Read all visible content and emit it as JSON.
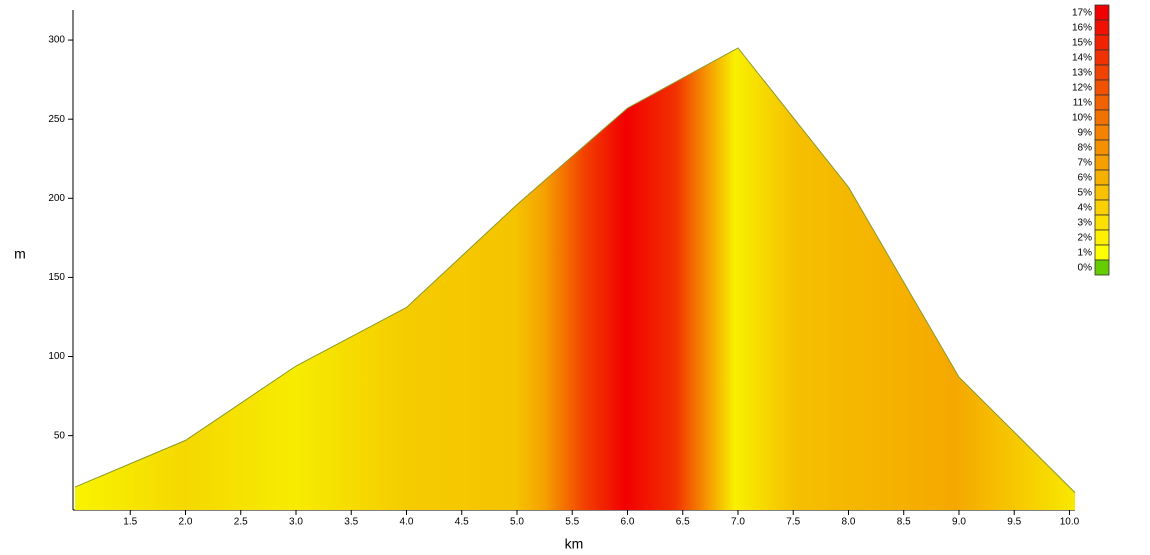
{
  "chart_data": {
    "type": "area",
    "x_label": "km",
    "y_label": "m",
    "x": [
      1,
      2,
      3,
      4,
      5,
      6,
      7,
      8,
      9,
      10.05
    ],
    "values": [
      17.5,
      47,
      94,
      131,
      196,
      257,
      295,
      207,
      87,
      14
    ],
    "color": "#8a9a2a",
    "xlim": [
      1,
      10.05
    ],
    "xticks": [
      1.5,
      {
        "value": 2,
        "label": "2.0"
      },
      2.5,
      {
        "value": 3,
        "label": "3.0"
      },
      3.5,
      {
        "value": 4,
        "label": "4.0"
      },
      4.5,
      {
        "value": 5,
        "label": "5.0"
      },
      5.5,
      {
        "value": 6,
        "label": "6.0"
      },
      6.5,
      {
        "value": 7,
        "label": "7.0"
      },
      7.5,
      {
        "value": 8,
        "label": "8.0"
      },
      8.5,
      {
        "value": 9,
        "label": "9.0"
      },
      9.5,
      {
        "value": 10,
        "label": "10.0"
      }
    ],
    "ylim": [
      3,
      319
    ],
    "yticks": [
      50,
      100,
      150,
      200,
      250,
      300
    ],
    "legend": [
      {
        "label": "17%",
        "color": "#f00000"
      },
      {
        "label": "16%",
        "color": "#f01200"
      },
      {
        "label": "15%",
        "color": "#f02200"
      },
      {
        "label": "14%",
        "color": "#f03200"
      },
      {
        "label": "13%",
        "color": "#f04200"
      },
      {
        "label": "12%",
        "color": "#f05200"
      },
      {
        "label": "11%",
        "color": "#f06200"
      },
      {
        "label": "10%",
        "color": "#f27200"
      },
      {
        "label": "9%",
        "color": "#f58200"
      },
      {
        "label": "8%",
        "color": "#f59000"
      },
      {
        "label": "7%",
        "color": "#f5a000"
      },
      {
        "label": "6%",
        "color": "#f5b000"
      },
      {
        "label": "5%",
        "color": "#f8c200"
      },
      {
        "label": "4%",
        "color": "#fad000"
      },
      {
        "label": "3%",
        "color": "#fce000"
      },
      {
        "label": "2%",
        "color": "#fdf000"
      },
      {
        "label": "1%",
        "color": "#ffff00"
      },
      {
        "label": "0%",
        "color": "#66cc00"
      }
    ]
  }
}
